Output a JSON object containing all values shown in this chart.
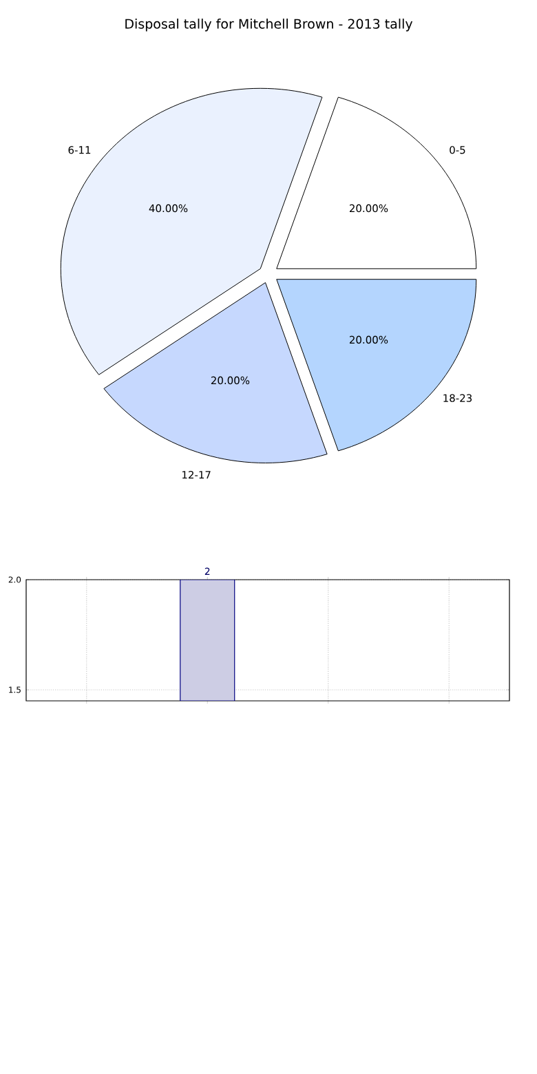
{
  "chart_data": [
    {
      "type": "pie",
      "title": "Disposal tally for Mitchell Brown - 2013 tally",
      "categories": [
        "0-5",
        "6-11",
        "12-17",
        "18-23"
      ],
      "values": [
        20,
        40,
        20,
        20
      ],
      "colors": [
        "#ffffff",
        "#eaf1fe",
        "#c6d8fe",
        "#b4d5fe"
      ],
      "value_labels": [
        "20.00%",
        "40.00%",
        "20.00%",
        "20.00%"
      ]
    },
    {
      "type": "bar",
      "categories": [
        null,
        null,
        null,
        null
      ],
      "values": [
        null,
        2,
        null,
        null
      ],
      "color": "#cdcde4",
      "ylim": [
        1.45,
        2.0
      ],
      "yticks": [
        1.5,
        {
          "value": 2,
          "label": "2.0"
        }
      ],
      "grid": true,
      "data_labels": true,
      "tick_labels": "y"
    }
  ]
}
